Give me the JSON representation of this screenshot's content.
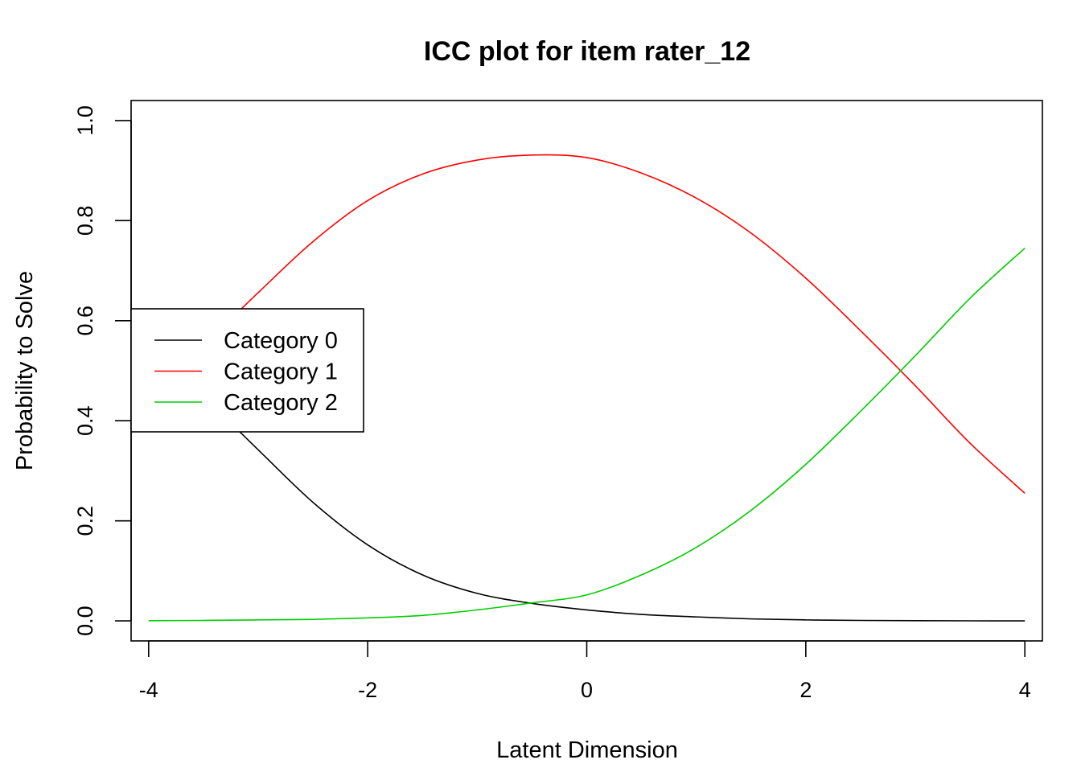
{
  "chart_data": {
    "type": "line",
    "title": "ICC plot for item rater_12",
    "xlabel": "Latent Dimension",
    "ylabel": "Probability to Solve",
    "xlim": [
      -4.16,
      4.16
    ],
    "ylim": [
      -0.04,
      1.04
    ],
    "x_ticks": [
      -4,
      -2,
      0,
      2,
      4
    ],
    "x_tick_labels": [
      "-4",
      "-2",
      "0",
      "2",
      "4"
    ],
    "y_ticks": [
      0,
      0.2,
      0.4,
      0.6,
      0.8,
      1.0
    ],
    "y_tick_labels": [
      "0.0",
      "0.2",
      "0.4",
      "0.6",
      "0.8",
      "1.0"
    ],
    "grid": false,
    "legend_position": "left",
    "x": [
      -4,
      -3.5,
      -3,
      -2.5,
      -2,
      -1.5,
      -1,
      -0.5,
      0,
      0.5,
      1,
      1.5,
      2,
      2.5,
      3,
      3.5,
      4
    ],
    "series": [
      {
        "name": "Category 0",
        "color": "#000000",
        "values": [
          0.543,
          0.448,
          0.342,
          0.237,
          0.152,
          0.092,
          0.055,
          0.035,
          0.022,
          0.013,
          0.008,
          0.004,
          0.002,
          0.001,
          0.0005,
          0.0002,
          0.0001
        ]
      },
      {
        "name": "Category 1",
        "color": "#ff0000",
        "values": [
          0.457,
          0.551,
          0.656,
          0.758,
          0.84,
          0.893,
          0.921,
          0.931,
          0.926,
          0.895,
          0.845,
          0.775,
          0.685,
          0.58,
          0.47,
          0.355,
          0.255
        ]
      },
      {
        "name": "Category 2",
        "color": "#00cd00",
        "values": [
          0.0005,
          0.001,
          0.002,
          0.003,
          0.006,
          0.011,
          0.022,
          0.036,
          0.052,
          0.092,
          0.147,
          0.221,
          0.313,
          0.419,
          0.53,
          0.645,
          0.745
        ]
      }
    ]
  }
}
